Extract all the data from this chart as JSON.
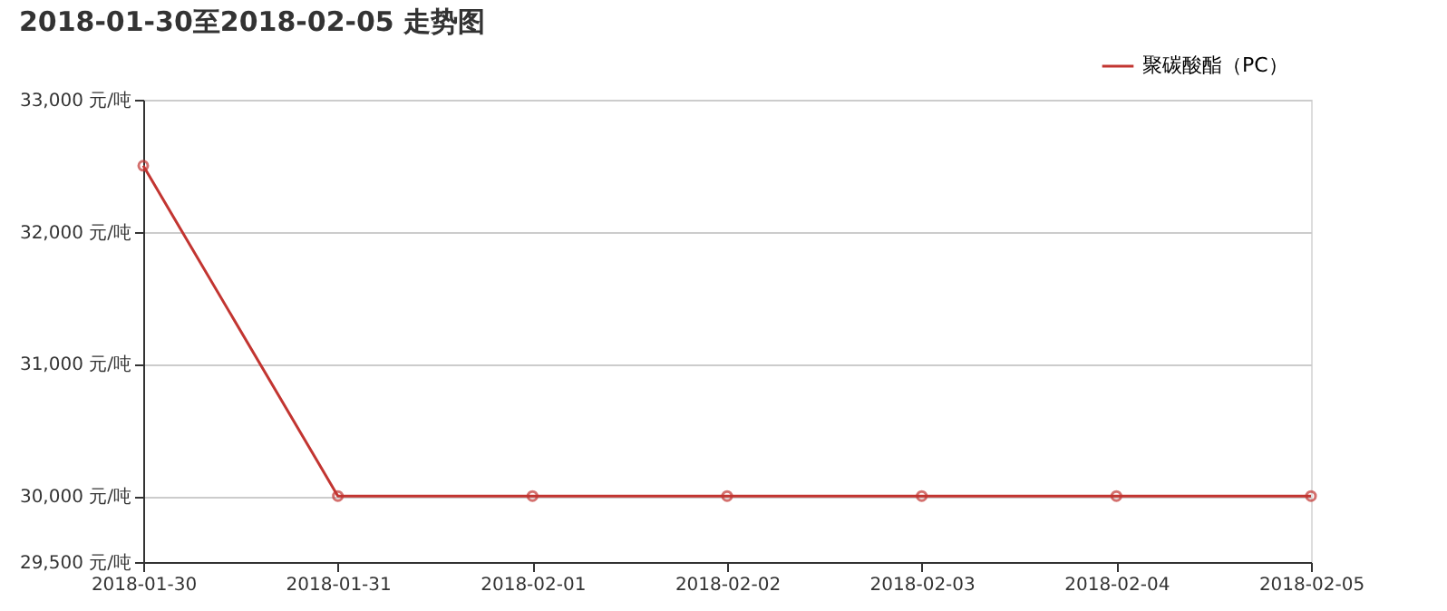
{
  "chart_data": {
    "type": "line",
    "title": "2018-01-30至2018-02-05 走势图",
    "categories": [
      "2018-01-30",
      "2018-01-31",
      "2018-02-01",
      "2018-02-02",
      "2018-02-03",
      "2018-02-04",
      "2018-02-05"
    ],
    "series": [
      {
        "name": "聚碳酸酯（PC）",
        "color": "#c23531",
        "values": [
          32500,
          30000,
          30000,
          30000,
          30000,
          30000,
          30000
        ]
      }
    ],
    "ylim": [
      29500,
      33000
    ],
    "yticks": [
      {
        "value": 29500,
        "label": "29,500 元/吨"
      },
      {
        "value": 30000,
        "label": "30,000 元/吨"
      },
      {
        "value": 31000,
        "label": "31,000 元/吨"
      },
      {
        "value": 32000,
        "label": "32,000 元/吨"
      },
      {
        "value": 33000,
        "label": "33,000 元/吨"
      }
    ],
    "grid": "y",
    "legend": "top right",
    "marker": "circle",
    "line_style": "solid"
  }
}
